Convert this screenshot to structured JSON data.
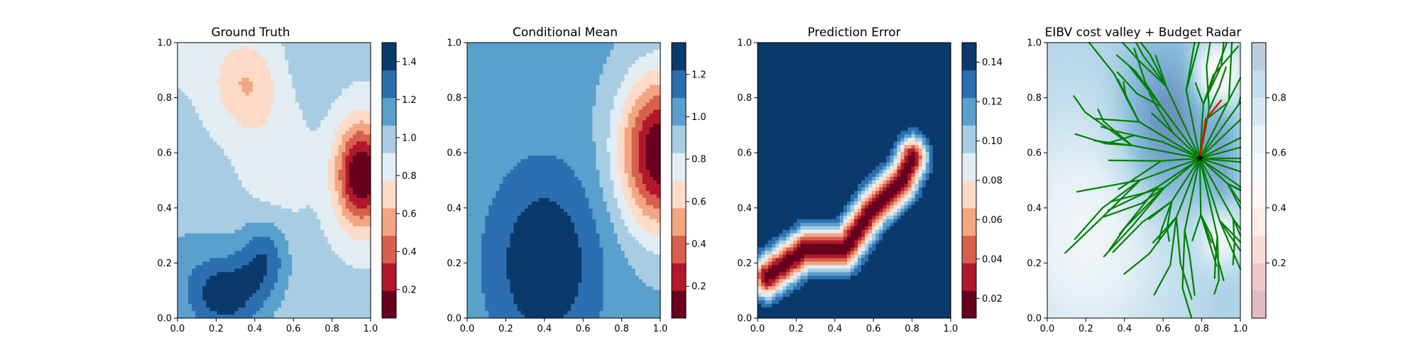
{
  "chart_data": [
    {
      "type": "heatmap",
      "title": "Ground Truth",
      "xlim": [
        0,
        1
      ],
      "ylim": [
        0,
        1
      ],
      "xticks": [
        "0.0",
        "0.2",
        "0.4",
        "0.6",
        "0.8",
        "1.0"
      ],
      "yticks": [
        "0.0",
        "0.2",
        "0.4",
        "0.6",
        "0.8",
        "1.0"
      ],
      "colorbar": {
        "ticks": [
          0.2,
          0.4,
          0.6,
          0.8,
          1.0,
          1.2,
          1.4
        ],
        "tick_labels": [
          "0.2",
          "0.4",
          "0.6",
          "0.8",
          "1.0",
          "1.2",
          "1.4"
        ],
        "range": [
          0.05,
          1.5
        ]
      },
      "field": {
        "base": 0.95,
        "blobs": [
          {
            "x": 0.95,
            "y": 0.52,
            "sx": 0.09,
            "sy": 0.13,
            "a": -0.95
          },
          {
            "x": 0.35,
            "y": 0.85,
            "sx": 0.12,
            "sy": 0.12,
            "a": -0.32
          },
          {
            "x": 0.5,
            "y": 0.55,
            "sx": 0.12,
            "sy": 0.16,
            "a": -0.12
          },
          {
            "x": 0.25,
            "y": 0.08,
            "sx": 0.14,
            "sy": 0.1,
            "a": 0.45
          },
          {
            "x": 0.45,
            "y": 0.22,
            "sx": 0.09,
            "sy": 0.1,
            "a": 0.35
          },
          {
            "x": 0.05,
            "y": 0.2,
            "sx": 0.2,
            "sy": 0.18,
            "a": 0.12
          },
          {
            "x": 0.05,
            "y": 0.95,
            "sx": 0.1,
            "sy": 0.1,
            "a": -0.05
          },
          {
            "x": 0.7,
            "y": 0.95,
            "sx": 0.08,
            "sy": 0.1,
            "a": 0.1
          }
        ]
      }
    },
    {
      "type": "heatmap",
      "title": "Conditional Mean",
      "xlim": [
        0,
        1
      ],
      "ylim": [
        0,
        1
      ],
      "xticks": [
        "0.0",
        "0.2",
        "0.4",
        "0.6",
        "0.8",
        "1.0"
      ],
      "yticks": [
        "0.0",
        "0.2",
        "0.4",
        "0.6",
        "0.8",
        "1.0"
      ],
      "colorbar": {
        "ticks": [
          0.2,
          0.4,
          0.6,
          0.8,
          1.0,
          1.2
        ],
        "tick_labels": [
          "0.2",
          "0.4",
          "0.6",
          "0.8",
          "1.0",
          "1.2"
        ],
        "range": [
          0.05,
          1.35
        ]
      },
      "field": {
        "base": 1.0,
        "blobs": [
          {
            "x": 1.0,
            "y": 0.6,
            "sx": 0.15,
            "sy": 0.2,
            "a": -0.95
          },
          {
            "x": 0.4,
            "y": 0.2,
            "sx": 0.2,
            "sy": 0.24,
            "a": 0.35
          }
        ]
      }
    },
    {
      "type": "heatmap",
      "title": "Prediction Error",
      "xlim": [
        0,
        1
      ],
      "ylim": [
        0,
        1
      ],
      "xticks": [
        "0.0",
        "0.2",
        "0.4",
        "0.6",
        "0.8",
        "1.0"
      ],
      "yticks": [
        "0.0",
        "0.2",
        "0.4",
        "0.6",
        "0.8",
        "1.0"
      ],
      "colorbar": {
        "ticks": [
          0.02,
          0.04,
          0.06,
          0.08,
          0.1,
          0.12,
          0.14
        ],
        "tick_labels": [
          "0.02",
          "0.04",
          "0.06",
          "0.08",
          "0.10",
          "0.12",
          "0.14"
        ],
        "range": [
          0.01,
          0.15
        ]
      },
      "field": {
        "type": "path_distance",
        "path": [
          [
            0.05,
            0.15
          ],
          [
            0.25,
            0.25
          ],
          [
            0.45,
            0.25
          ],
          [
            0.6,
            0.4
          ],
          [
            0.75,
            0.5
          ],
          [
            0.8,
            0.58
          ]
        ],
        "min": 0.015,
        "max": 0.155,
        "falloff": 0.055
      }
    },
    {
      "type": "heatmap",
      "title": "EIBV cost valley + Budget Radar",
      "xlim": [
        0,
        1
      ],
      "ylim": [
        0,
        1
      ],
      "xticks": [
        "0.0",
        "0.2",
        "0.4",
        "0.6",
        "0.8",
        "1.0"
      ],
      "yticks": [
        "0.0",
        "0.2",
        "0.4",
        "0.6",
        "0.8",
        "1.0"
      ],
      "colorbar": {
        "ticks": [
          0.2,
          0.4,
          0.6,
          0.8
        ],
        "tick_labels": [
          "0.2",
          "0.4",
          "0.6",
          "0.8"
        ],
        "range": [
          0.0,
          1.0
        ]
      },
      "field": {
        "base": 0.72,
        "blobs": [
          {
            "x": 0.88,
            "y": 0.88,
            "sx": 0.08,
            "sy": 0.08,
            "a": -0.35
          },
          {
            "x": 0.9,
            "y": 0.3,
            "sx": 0.07,
            "sy": 0.08,
            "a": -0.25
          },
          {
            "x": 0.62,
            "y": 0.7,
            "sx": 0.16,
            "sy": 0.2,
            "a": 0.25
          },
          {
            "x": 0.2,
            "y": 0.3,
            "sx": 0.3,
            "sy": 0.3,
            "a": -0.18
          },
          {
            "x": 0.9,
            "y": 0.55,
            "sx": 0.06,
            "sy": 0.25,
            "a": 0.12
          }
        ]
      },
      "radar_center": [
        0.79,
        0.58
      ],
      "path_color": "#008000",
      "highlight_path_color": "#ff0000",
      "center_marker": "star"
    }
  ]
}
